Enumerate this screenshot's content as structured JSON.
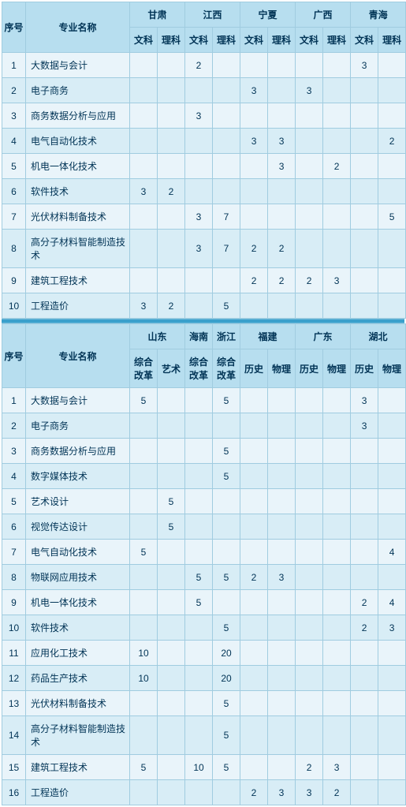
{
  "labels": {
    "seq": "序号",
    "major": "专业名称",
    "wen": "文科",
    "li": "理科",
    "zongai": "综合\n改革",
    "yishu": "艺术",
    "lishi": "历史",
    "wuli": "物理"
  },
  "table1": {
    "provinces": [
      "甘肃",
      "江西",
      "宁夏",
      "广西",
      "青海"
    ],
    "rows": [
      {
        "n": "1",
        "name": "大数据与会计",
        "v": [
          "",
          "",
          "2",
          "",
          "",
          "",
          "",
          "",
          "3",
          ""
        ]
      },
      {
        "n": "2",
        "name": "电子商务",
        "v": [
          "",
          "",
          "",
          "",
          "3",
          "",
          "3",
          "",
          "",
          ""
        ]
      },
      {
        "n": "3",
        "name": "商务数据分析与应用",
        "v": [
          "",
          "",
          "3",
          "",
          "",
          "",
          "",
          "",
          "",
          ""
        ]
      },
      {
        "n": "4",
        "name": "电气自动化技术",
        "v": [
          "",
          "",
          "",
          "",
          "3",
          "3",
          "",
          "",
          "",
          "2"
        ]
      },
      {
        "n": "5",
        "name": "机电一体化技术",
        "v": [
          "",
          "",
          "",
          "",
          "",
          "3",
          "",
          "2",
          "",
          ""
        ]
      },
      {
        "n": "6",
        "name": "软件技术",
        "v": [
          "3",
          "2",
          "",
          "",
          "",
          "",
          "",
          "",
          "",
          ""
        ]
      },
      {
        "n": "7",
        "name": "光伏材料制备技术",
        "v": [
          "",
          "",
          "3",
          "7",
          "",
          "",
          "",
          "",
          "",
          "5"
        ]
      },
      {
        "n": "8",
        "name": "高分子材料智能制造技术",
        "v": [
          "",
          "",
          "3",
          "7",
          "2",
          "2",
          "",
          "",
          "",
          ""
        ]
      },
      {
        "n": "9",
        "name": "建筑工程技术",
        "v": [
          "",
          "",
          "",
          "",
          "2",
          "2",
          "2",
          "3",
          "",
          ""
        ]
      },
      {
        "n": "10",
        "name": "工程造价",
        "v": [
          "3",
          "2",
          "",
          "5",
          "",
          "",
          "",
          "",
          "",
          ""
        ]
      }
    ]
  },
  "table2": {
    "provinces": [
      "山东",
      "海南",
      "浙江",
      "福建",
      "广东",
      "湖北"
    ],
    "rows": [
      {
        "n": "1",
        "name": "大数据与会计",
        "v": [
          "5",
          "",
          "",
          "5",
          "",
          "",
          "",
          "",
          "3",
          ""
        ]
      },
      {
        "n": "2",
        "name": "电子商务",
        "v": [
          "",
          "",
          "",
          "",
          "",
          "",
          "",
          "",
          "3",
          ""
        ]
      },
      {
        "n": "3",
        "name": "商务数据分析与应用",
        "v": [
          "",
          "",
          "",
          "5",
          "",
          "",
          "",
          "",
          "",
          ""
        ]
      },
      {
        "n": "4",
        "name": "数字媒体技术",
        "v": [
          "",
          "",
          "",
          "5",
          "",
          "",
          "",
          "",
          "",
          ""
        ]
      },
      {
        "n": "5",
        "name": "艺术设计",
        "v": [
          "",
          "5",
          "",
          "",
          "",
          "",
          "",
          "",
          "",
          ""
        ]
      },
      {
        "n": "6",
        "name": "视觉传达设计",
        "v": [
          "",
          "5",
          "",
          "",
          "",
          "",
          "",
          "",
          "",
          ""
        ]
      },
      {
        "n": "7",
        "name": "电气自动化技术",
        "v": [
          "5",
          "",
          "",
          "",
          "",
          "",
          "",
          "",
          "",
          "4"
        ]
      },
      {
        "n": "8",
        "name": "物联网应用技术",
        "v": [
          "",
          "",
          "5",
          "5",
          "2",
          "3",
          "",
          "",
          "",
          ""
        ]
      },
      {
        "n": "9",
        "name": "机电一体化技术",
        "v": [
          "",
          "",
          "5",
          "",
          "",
          "",
          "",
          "",
          "2",
          "4"
        ]
      },
      {
        "n": "10",
        "name": "软件技术",
        "v": [
          "",
          "",
          "",
          "5",
          "",
          "",
          "",
          "",
          "2",
          "3"
        ]
      },
      {
        "n": "11",
        "name": "应用化工技术",
        "v": [
          "10",
          "",
          "",
          "20",
          "",
          "",
          "",
          "",
          "",
          ""
        ]
      },
      {
        "n": "12",
        "name": "药品生产技术",
        "v": [
          "10",
          "",
          "",
          "20",
          "",
          "",
          "",
          "",
          "",
          ""
        ]
      },
      {
        "n": "13",
        "name": "光伏材料制备技术",
        "v": [
          "",
          "",
          "",
          "5",
          "",
          "",
          "",
          "",
          "",
          ""
        ]
      },
      {
        "n": "14",
        "name": "高分子材料智能制造技术",
        "v": [
          "",
          "",
          "",
          "5",
          "",
          "",
          "",
          "",
          "",
          ""
        ]
      },
      {
        "n": "15",
        "name": "建筑工程技术",
        "v": [
          "5",
          "",
          "10",
          "5",
          "",
          "",
          "2",
          "3",
          "",
          ""
        ]
      },
      {
        "n": "16",
        "name": "工程造价",
        "v": [
          "",
          "",
          "",
          "",
          "2",
          "3",
          "3",
          "2",
          "",
          ""
        ]
      }
    ]
  }
}
